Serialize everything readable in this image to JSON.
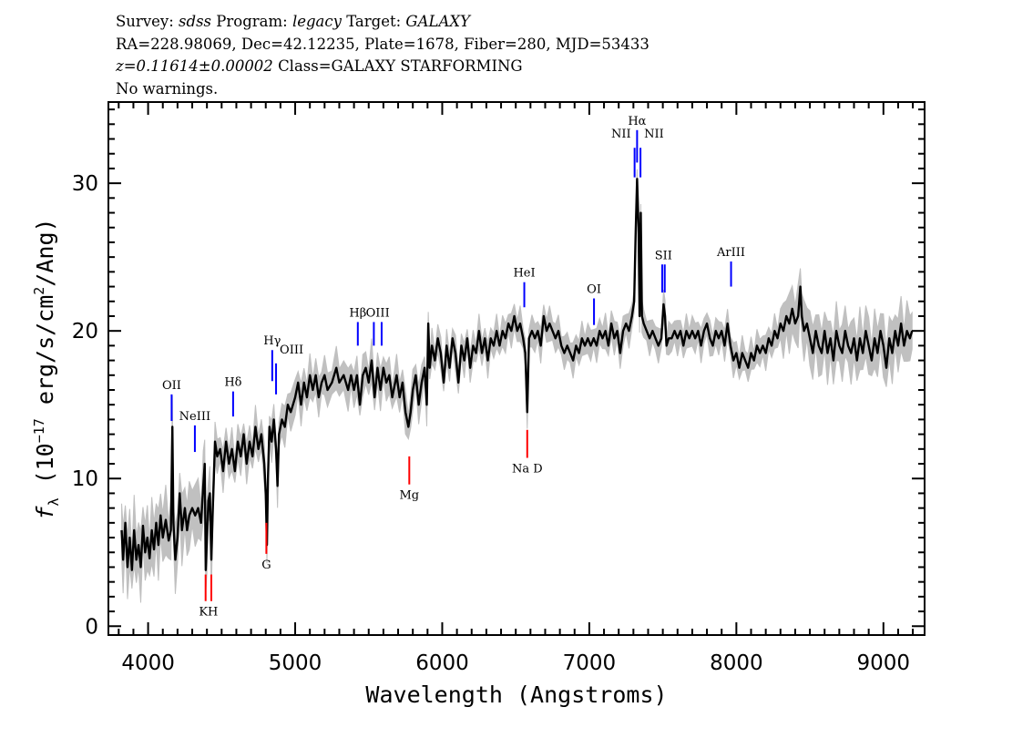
{
  "header": {
    "line1": {
      "survey_label": "Survey:",
      "survey": "sdss",
      "program_label": "Program:",
      "program": "legacy",
      "target_label": "Target:",
      "target": "GALAXY"
    },
    "line2": "RA=228.98069, Dec=42.12235, Plate=1678, Fiber=280, MJD=53433",
    "line3": {
      "redshift": "z=0.11614±0.00002",
      "class": "Class=GALAXY STARFORMING"
    },
    "line4": "No warnings."
  },
  "chart_data": {
    "type": "line",
    "xlabel": "Wavelength (Angstroms)",
    "ylabel": {
      "symbol": "f",
      "sub": "λ",
      "pre": " (10",
      "exp": "−17",
      "mid": " erg/s/cm",
      "exp2": "2",
      "post": "/Ang)"
    },
    "xlim": [
      3730,
      9280
    ],
    "ylim": [
      -0.6,
      35.5
    ],
    "x_ticks": [
      4000,
      5000,
      6000,
      7000,
      8000,
      9000
    ],
    "y_ticks": [
      0,
      10,
      20,
      30
    ],
    "x_minor_step": 100,
    "y_minor_step": 1,
    "grid": false,
    "colors": {
      "flux": "#000000",
      "error": "#c0c0c0",
      "emission": "#0000ff",
      "absorption": "#ff0000"
    },
    "error_band": [
      {
        "x_from": 3820,
        "x_to": 4450,
        "sigma": 1.8
      },
      {
        "x_from": 4450,
        "x_to": 5900,
        "sigma": 1.1
      },
      {
        "x_from": 5900,
        "x_to": 8300,
        "sigma": 0.9
      },
      {
        "x_from": 8300,
        "x_to": 9200,
        "sigma": 1.6
      }
    ],
    "flux": {
      "x": [
        3820,
        3830,
        3845,
        3860,
        3875,
        3890,
        3905,
        3920,
        3935,
        3950,
        3965,
        3980,
        3995,
        4010,
        4025,
        4040,
        4055,
        4070,
        4085,
        4100,
        4120,
        4140,
        4155,
        4165,
        4172,
        4185,
        4200,
        4215,
        4230,
        4250,
        4265,
        4280,
        4300,
        4320,
        4340,
        4360,
        4375,
        4385,
        4392,
        4400,
        4410,
        4420,
        4430,
        4440,
        4455,
        4470,
        4490,
        4510,
        4530,
        4550,
        4570,
        4590,
        4610,
        4630,
        4650,
        4670,
        4690,
        4710,
        4730,
        4750,
        4770,
        4790,
        4800,
        4808,
        4815,
        4825,
        4840,
        4855,
        4870,
        4880,
        4890,
        4910,
        4930,
        4950,
        4970,
        5000,
        5020,
        5040,
        5060,
        5080,
        5100,
        5120,
        5140,
        5160,
        5180,
        5200,
        5220,
        5250,
        5280,
        5300,
        5330,
        5360,
        5380,
        5400,
        5420,
        5440,
        5460,
        5480,
        5500,
        5520,
        5540,
        5560,
        5580,
        5600,
        5620,
        5640,
        5660,
        5690,
        5710,
        5730,
        5750,
        5770,
        5785,
        5800,
        5820,
        5840,
        5860,
        5880,
        5895,
        5905,
        5915,
        5930,
        5950,
        5970,
        5990,
        6010,
        6030,
        6050,
        6070,
        6090,
        6110,
        6130,
        6150,
        6170,
        6190,
        6210,
        6230,
        6250,
        6270,
        6290,
        6310,
        6330,
        6350,
        6370,
        6390,
        6410,
        6430,
        6450,
        6470,
        6490,
        6510,
        6530,
        6550,
        6565,
        6578,
        6590,
        6610,
        6630,
        6650,
        6670,
        6690,
        6710,
        6730,
        6750,
        6770,
        6790,
        6810,
        6830,
        6850,
        6870,
        6890,
        6910,
        6930,
        6950,
        6970,
        6990,
        7010,
        7030,
        7050,
        7070,
        7090,
        7110,
        7130,
        7150,
        7170,
        7190,
        7210,
        7230,
        7250,
        7270,
        7290,
        7305,
        7315,
        7325,
        7335,
        7342,
        7350,
        7358,
        7370,
        7390,
        7410,
        7430,
        7450,
        7470,
        7490,
        7505,
        7515,
        7525,
        7540,
        7560,
        7580,
        7600,
        7620,
        7640,
        7660,
        7680,
        7700,
        7720,
        7740,
        7760,
        7780,
        7800,
        7820,
        7840,
        7860,
        7880,
        7900,
        7920,
        7940,
        7960,
        7980,
        8000,
        8020,
        8040,
        8060,
        8080,
        8100,
        8120,
        8140,
        8160,
        8180,
        8200,
        8220,
        8240,
        8260,
        8280,
        8300,
        8320,
        8340,
        8360,
        8380,
        8400,
        8420,
        8435,
        8445,
        8460,
        8480,
        8500,
        8520,
        8540,
        8560,
        8580,
        8600,
        8620,
        8640,
        8660,
        8680,
        8700,
        8720,
        8740,
        8760,
        8780,
        8800,
        8820,
        8840,
        8860,
        8880,
        8900,
        8920,
        8940,
        8960,
        8980,
        9000,
        9020,
        9040,
        9060,
        9080,
        9100,
        9120,
        9140,
        9160,
        9180,
        9195
      ],
      "y": [
        6.5,
        4.5,
        7.0,
        4.0,
        6.0,
        3.8,
        6.5,
        4.5,
        5.5,
        4.0,
        6.8,
        5.0,
        6.0,
        4.6,
        6.5,
        5.2,
        7.0,
        5.5,
        7.5,
        6.0,
        7.2,
        5.8,
        6.5,
        13.5,
        7.0,
        4.5,
        6.0,
        9.0,
        6.5,
        8.0,
        6.5,
        7.5,
        8.0,
        7.5,
        8.0,
        7.0,
        9.5,
        11.0,
        3.8,
        6.0,
        8.5,
        9.0,
        4.5,
        8.0,
        12.5,
        11.5,
        12.0,
        10.5,
        12.5,
        11.0,
        12.0,
        10.5,
        12.5,
        11.5,
        13.0,
        11.0,
        12.5,
        11.5,
        13.5,
        12.0,
        13.0,
        11.0,
        9.0,
        5.5,
        10.0,
        13.5,
        12.5,
        14.0,
        12.0,
        9.5,
        13.0,
        14.0,
        13.5,
        15.0,
        14.5,
        15.5,
        16.5,
        15.0,
        16.5,
        15.5,
        17.0,
        16.0,
        17.0,
        15.5,
        16.5,
        17.0,
        16.0,
        16.5,
        17.5,
        16.5,
        17.0,
        16.0,
        17.0,
        16.0,
        17.0,
        15.0,
        17.0,
        17.5,
        16.5,
        18.0,
        15.5,
        17.5,
        16.0,
        17.5,
        16.5,
        17.0,
        15.5,
        17.0,
        15.5,
        16.5,
        14.5,
        13.5,
        14.5,
        16.0,
        17.0,
        15.0,
        16.5,
        17.5,
        15.0,
        20.5,
        17.5,
        19.0,
        18.0,
        19.5,
        18.5,
        16.5,
        19.0,
        17.5,
        19.5,
        18.5,
        16.5,
        19.0,
        18.0,
        19.5,
        17.5,
        19.0,
        18.5,
        20.0,
        18.5,
        19.5,
        18.0,
        19.5,
        19.0,
        20.0,
        19.0,
        20.0,
        19.5,
        20.5,
        20.0,
        21.0,
        20.0,
        20.5,
        19.5,
        18.5,
        14.5,
        19.5,
        20.0,
        19.5,
        20.0,
        19.0,
        21.0,
        20.0,
        20.5,
        20.0,
        19.5,
        20.0,
        19.0,
        18.5,
        19.0,
        18.5,
        18.0,
        19.0,
        18.5,
        19.5,
        19.0,
        19.5,
        19.0,
        19.5,
        19.0,
        20.0,
        19.5,
        20.0,
        19.0,
        20.5,
        19.5,
        20.0,
        18.5,
        20.0,
        20.5,
        20.0,
        21.0,
        22.0,
        26.5,
        30.3,
        27.0,
        21.0,
        28.0,
        21.0,
        20.5,
        20.0,
        19.5,
        20.0,
        19.5,
        19.0,
        19.5,
        21.8,
        21.0,
        19.0,
        19.5,
        19.5,
        20.0,
        19.5,
        20.0,
        19.0,
        20.0,
        19.5,
        20.0,
        19.5,
        20.0,
        19.0,
        20.0,
        20.5,
        19.5,
        19.0,
        20.0,
        19.5,
        20.0,
        19.0,
        20.5,
        19.0,
        18.0,
        18.5,
        17.5,
        18.5,
        18.0,
        17.5,
        18.5,
        18.0,
        19.0,
        18.5,
        19.0,
        18.5,
        19.5,
        19.0,
        20.0,
        19.5,
        20.5,
        20.0,
        21.0,
        20.5,
        21.5,
        20.5,
        21.0,
        23.0,
        21.0,
        20.0,
        20.5,
        19.5,
        18.5,
        20.0,
        19.0,
        18.5,
        20.0,
        18.5,
        19.5,
        18.0,
        20.0,
        19.0,
        18.5,
        20.0,
        19.0,
        18.5,
        19.5,
        18.0,
        19.5,
        18.5,
        20.0,
        19.0,
        18.0,
        19.5,
        18.5,
        20.0,
        19.0,
        17.5,
        19.5,
        18.5,
        20.0,
        19.0,
        20.5,
        19.0,
        20.0,
        19.5,
        20.0
      ]
    },
    "emission_lines": [
      {
        "label": "OII",
        "x": [
          4160
        ],
        "y_range": [
          13.9,
          15.7
        ]
      },
      {
        "label": "NeIII",
        "x": [
          4318
        ],
        "y_range": [
          11.8,
          13.6
        ]
      },
      {
        "label": "Hδ",
        "x": [
          4578
        ],
        "y_range": [
          14.2,
          15.9
        ]
      },
      {
        "label": "Hγ",
        "x": [
          4844
        ],
        "y_range": [
          16.6,
          18.7
        ]
      },
      {
        "label": "OIII",
        "x": [
          4870
        ],
        "y_range": [
          15.7,
          17.8
        ],
        "label_side": "right"
      },
      {
        "label": "Hβ",
        "x": [
          5426
        ],
        "y_range": [
          19.0,
          20.6
        ]
      },
      {
        "label": "OIII",
        "x": [
          5535,
          5588
        ],
        "y_range": [
          19.0,
          20.6
        ]
      },
      {
        "label": "HeI",
        "x": [
          6558
        ],
        "y_range": [
          21.6,
          23.3
        ]
      },
      {
        "label": "OI",
        "x": [
          7032
        ],
        "y_range": [
          20.4,
          22.2
        ]
      },
      {
        "label": "NII",
        "x": [
          7308
        ],
        "y_range": [
          30.4,
          32.4
        ],
        "label_side": "left"
      },
      {
        "label": "Hα",
        "x": [
          7325
        ],
        "y_range": [
          31.4,
          33.6
        ]
      },
      {
        "label": "NII",
        "x": [
          7348
        ],
        "y_range": [
          30.4,
          32.4
        ],
        "label_side": "right"
      },
      {
        "label": "SII",
        "x": [
          7496,
          7513
        ],
        "y_range": [
          22.6,
          24.5
        ]
      },
      {
        "label": "ArIII",
        "x": [
          7964
        ],
        "y_range": [
          23.0,
          24.7
        ]
      }
    ],
    "absorption_lines": [
      {
        "label": "KH",
        "x": [
          4391,
          4430
        ],
        "y_range": [
          1.7,
          3.5
        ]
      },
      {
        "label": "G",
        "x": [
          4804
        ],
        "y_range": [
          4.9,
          7.0
        ]
      },
      {
        "label": "Mg",
        "x": [
          5776
        ],
        "y_range": [
          9.6,
          11.5
        ]
      },
      {
        "label": "Na D",
        "x": [
          6578
        ],
        "y_range": [
          11.4,
          13.3
        ]
      }
    ]
  }
}
